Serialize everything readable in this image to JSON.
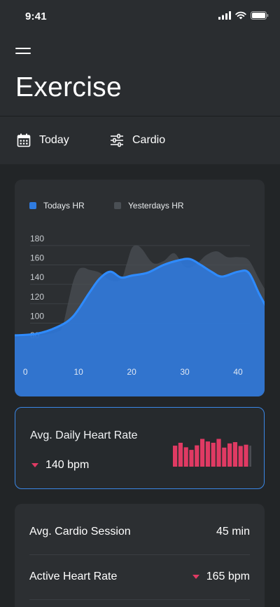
{
  "status_bar": {
    "time": "9:41"
  },
  "header": {
    "title": "Exercise"
  },
  "filters": {
    "date_label": "Today",
    "type_label": "Cardio"
  },
  "chart_data": {
    "type": "area",
    "x": [
      0,
      10,
      20,
      30,
      40
    ],
    "xlim": [
      -2,
      45
    ],
    "ylim": [
      70,
      190
    ],
    "y_ticks": [
      80,
      100,
      120,
      140,
      160,
      180
    ],
    "legend_position": "top-left",
    "series": [
      {
        "name": "Todays HR",
        "color": "#2f7be0",
        "points": [
          [
            -4,
            87
          ],
          [
            2,
            89
          ],
          [
            6,
            96
          ],
          [
            9,
            107
          ],
          [
            12,
            131
          ],
          [
            14,
            146
          ],
          [
            16,
            153
          ],
          [
            18,
            147
          ],
          [
            20,
            149
          ],
          [
            23,
            152
          ],
          [
            26,
            160
          ],
          [
            29,
            165
          ],
          [
            31,
            166
          ],
          [
            33,
            160
          ],
          [
            35,
            153
          ],
          [
            37,
            148
          ],
          [
            40,
            153
          ],
          [
            42,
            152
          ],
          [
            44,
            130
          ],
          [
            46,
            110
          ]
        ]
      },
      {
        "name": "Yesterdays HR",
        "color": "#4a4f54",
        "points": [
          [
            -4,
            85
          ],
          [
            2,
            87
          ],
          [
            6,
            91
          ],
          [
            7,
            97
          ],
          [
            8,
            120
          ],
          [
            9,
            143
          ],
          [
            10,
            155
          ],
          [
            11,
            157
          ],
          [
            12,
            155
          ],
          [
            14,
            152
          ],
          [
            16,
            144
          ],
          [
            18,
            145
          ],
          [
            19,
            160
          ],
          [
            20,
            177
          ],
          [
            21,
            180
          ],
          [
            22,
            176
          ],
          [
            24,
            162
          ],
          [
            26,
            164
          ],
          [
            28,
            172
          ],
          [
            30,
            158
          ],
          [
            32,
            160
          ],
          [
            34,
            170
          ],
          [
            36,
            174
          ],
          [
            38,
            168
          ],
          [
            40,
            168
          ],
          [
            42,
            165
          ],
          [
            44,
            145
          ],
          [
            46,
            126
          ]
        ]
      }
    ]
  },
  "avg_daily": {
    "title": "Avg. Daily Heart Rate",
    "value": "140 bpm",
    "bar_color": "#e03a63",
    "bar_muted_color": "#4a4d52",
    "bars": [
      0.65,
      0.74,
      0.6,
      0.52,
      0.66,
      0.86,
      0.78,
      0.74,
      0.86,
      0.59,
      0.72,
      0.76,
      0.64,
      0.68
    ],
    "muted_bars": [
      0.65,
      0.68,
      0.8
    ]
  },
  "stats": [
    {
      "label": "Avg. Cardio Session",
      "value": "45 min",
      "trend": "none"
    },
    {
      "label": "Active Heart Rate",
      "value": "165 bpm",
      "trend": "down"
    }
  ],
  "colors": {
    "accent": "#2f7be0",
    "alert": "#e03a63",
    "background": "#222527"
  }
}
